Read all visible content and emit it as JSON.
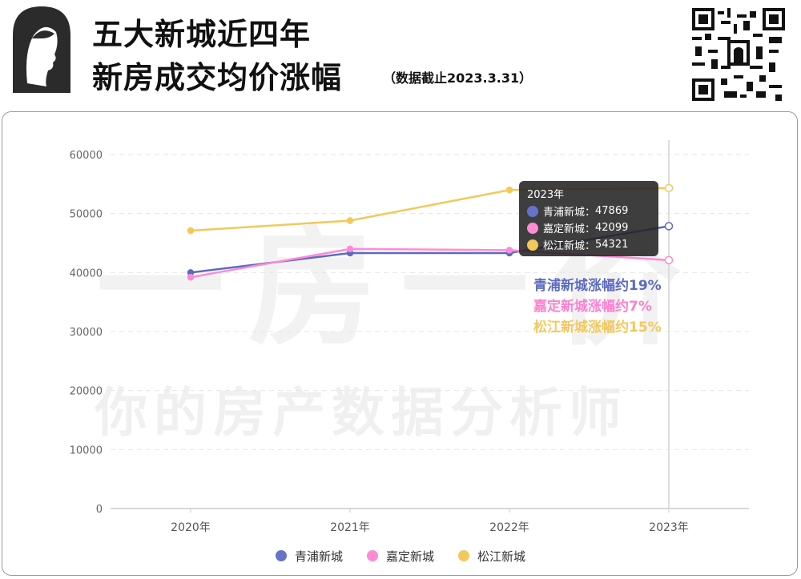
{
  "header": {
    "title_line1": "五大新城近四年",
    "title_line2": "新房成交均价涨幅",
    "subtitle": "（数据截止2023.3.31）"
  },
  "watermark": {
    "line1": "一房一价",
    "line2": "你的房产数据分析师"
  },
  "tooltip": {
    "title": "2023年",
    "rows": [
      {
        "label": "青浦新城：",
        "value": "47869"
      },
      {
        "label": "嘉定新城：",
        "value": "42099"
      },
      {
        "label": "松江新城：",
        "value": "54321"
      }
    ]
  },
  "annotations": [
    {
      "text": "青浦新城涨幅约19%",
      "color": "#5b6bc0"
    },
    {
      "text": "嘉定新城涨幅约7%",
      "color": "#ff7fcf"
    },
    {
      "text": "松江新城涨幅约15%",
      "color": "#f3c85a"
    }
  ],
  "chart_data": {
    "type": "line",
    "categories": [
      "2020年",
      "2021年",
      "2022年",
      "2023年"
    ],
    "series": [
      {
        "name": "青浦新城",
        "color": "#5b6bc0",
        "values": [
          40000,
          43300,
          43300,
          47869
        ]
      },
      {
        "name": "嘉定新城",
        "color": "#ff8ad6",
        "values": [
          39200,
          44000,
          43800,
          42099
        ]
      },
      {
        "name": "松江新城",
        "color": "#f3c85a",
        "values": [
          47100,
          48800,
          54000,
          54321
        ]
      }
    ],
    "y_ticks": [
      "0",
      "10000",
      "20000",
      "30000",
      "40000",
      "50000",
      "60000"
    ],
    "ylim": [
      0,
      60000
    ],
    "grid": "horizontal-dashed",
    "legend_position": "bottom-center"
  }
}
